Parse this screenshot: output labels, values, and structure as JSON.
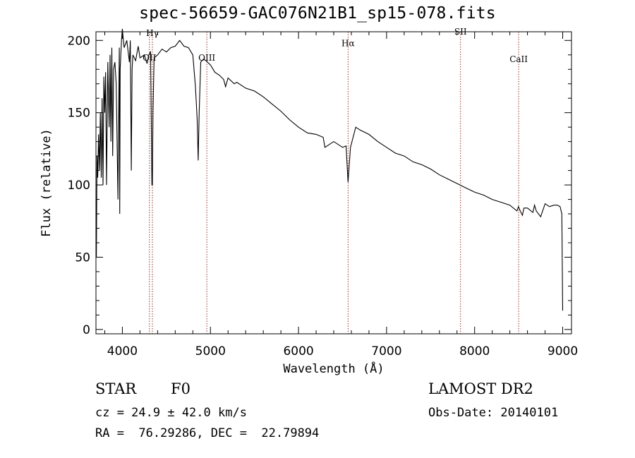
{
  "chart_data": {
    "type": "line",
    "title": "spec-56659-GAC076N21B1_sp15-078.fits",
    "xlabel": "Wavelength (Å)",
    "ylabel": "Flux (relative)",
    "xlim": [
      3700,
      9100
    ],
    "ylim": [
      -3,
      206
    ],
    "xticks": [
      4000,
      5000,
      6000,
      7000,
      8000,
      9000
    ],
    "yticks": [
      0,
      50,
      100,
      150,
      200
    ],
    "lines": [
      {
        "label": "OII",
        "wavelength": 4307,
        "label_y": 186
      },
      {
        "label": "Hγ",
        "wavelength": 4341,
        "label_y": 203
      },
      {
        "label": "OIII",
        "wavelength": 4959,
        "label_y": 186
      },
      {
        "label": "Hα",
        "wavelength": 6563,
        "label_y": 196
      },
      {
        "label": "SII",
        "wavelength": 7840,
        "label_y": 204
      },
      {
        "label": "CaII",
        "wavelength": 8500,
        "label_y": 185
      }
    ],
    "series": [
      {
        "name": "flux",
        "x": [
          3705,
          3712,
          3720,
          3730,
          3740,
          3750,
          3760,
          3770,
          3780,
          3790,
          3800,
          3810,
          3820,
          3835,
          3850,
          3860,
          3870,
          3880,
          3890,
          3900,
          3915,
          3930,
          3950,
          3965,
          3970,
          3975,
          3990,
          4000,
          4020,
          4050,
          4080,
          4090,
          4101,
          4110,
          4120,
          4150,
          4180,
          4200,
          4250,
          4280,
          4300,
          4320,
          4335,
          4341,
          4347,
          4360,
          4400,
          4450,
          4500,
          4550,
          4600,
          4650,
          4700,
          4750,
          4800,
          4830,
          4850,
          4861,
          4872,
          4890,
          4920,
          4950,
          5000,
          5050,
          5100,
          5150,
          5172,
          5200,
          5270,
          5300,
          5400,
          5500,
          5600,
          5700,
          5800,
          5900,
          6000,
          6100,
          6200,
          6280,
          6300,
          6400,
          6500,
          6540,
          6563,
          6590,
          6650,
          6700,
          6800,
          6900,
          7000,
          7100,
          7200,
          7300,
          7400,
          7500,
          7600,
          7700,
          7800,
          7900,
          8000,
          8100,
          8200,
          8300,
          8400,
          8480,
          8498,
          8510,
          8542,
          8560,
          8600,
          8662,
          8680,
          8700,
          8750,
          8800,
          8850,
          8900,
          8940,
          8970,
          8990,
          9000
        ],
        "y": [
          50,
          120,
          105,
          135,
          110,
          150,
          105,
          160,
          100,
          175,
          150,
          178,
          100,
          185,
          140,
          190,
          130,
          195,
          120,
          180,
          185,
          170,
          90,
          195,
          80,
          180,
          200,
          208,
          195,
          200,
          185,
          200,
          110,
          180,
          190,
          186,
          196,
          188,
          190,
          184,
          190,
          192,
          100,
          100,
          150,
          188,
          190,
          194,
          192,
          195,
          196,
          200,
          196,
          195,
          190,
          168,
          145,
          117,
          150,
          185,
          187,
          186,
          183,
          178,
          176,
          173,
          168,
          174,
          170,
          171,
          167,
          165,
          161,
          156,
          151,
          145,
          140,
          136,
          135,
          133,
          126,
          130,
          126,
          127,
          102,
          126,
          140,
          138,
          135,
          130,
          126,
          122,
          120,
          116,
          114,
          111,
          107,
          104,
          101,
          98,
          95,
          93,
          90,
          88,
          86,
          82,
          85,
          83,
          79,
          84,
          84,
          81,
          86,
          82,
          78,
          87,
          85,
          86,
          86,
          85,
          80,
          13
        ]
      }
    ]
  },
  "footer": {
    "object_class": "STAR",
    "subclass": "F0",
    "cz": "cz = 24.9 ± 42.0 km/s",
    "coords": "RA =  76.29286, DEC =  22.79894",
    "survey": "LAMOST DR2",
    "obs_date": "Obs-Date: 20140101"
  }
}
